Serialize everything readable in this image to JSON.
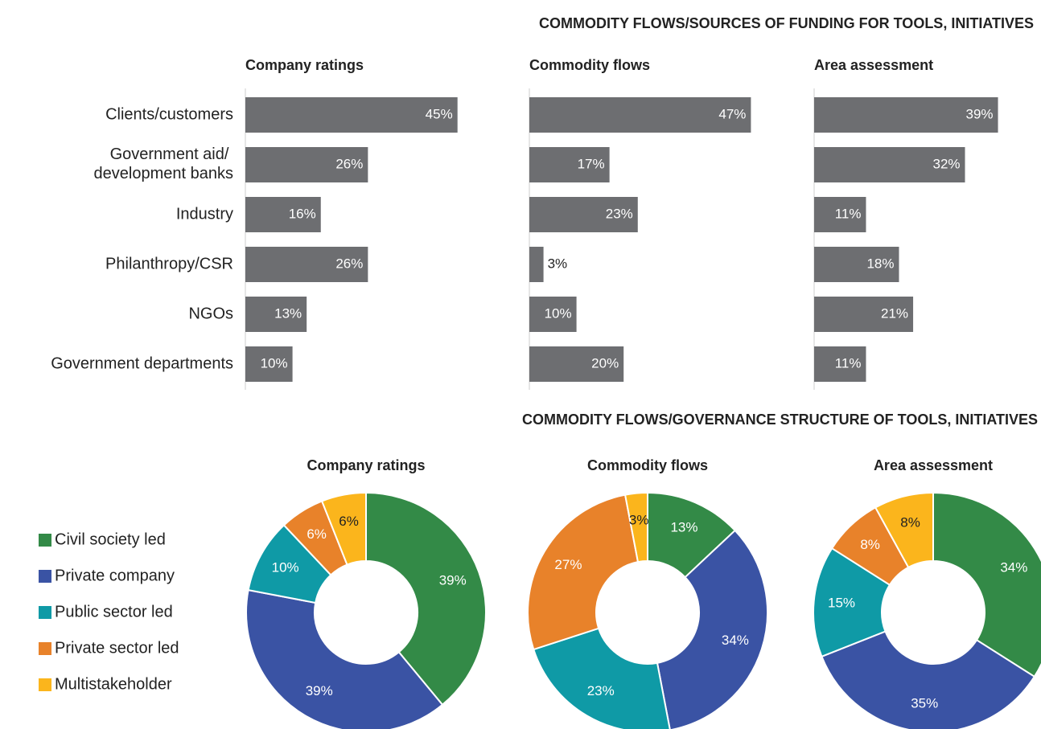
{
  "chart_data": [
    {
      "type": "bar",
      "title": "COMMODITY FLOWS/SOURCES OF FUNDING FOR TOOLS, INITIATIVES",
      "categories": [
        "Clients/customers",
        "Government aid/ development banks",
        "Industry",
        "Philanthropy/CSR",
        "NGOs",
        "Government departments"
      ],
      "xlim": [
        0,
        50
      ],
      "series": [
        {
          "name": "Company ratings",
          "color": "#6d6e71",
          "values": [
            45,
            26,
            16,
            26,
            13,
            10
          ],
          "value_labels": [
            "45%",
            "26%",
            "16%",
            "26%",
            "13%",
            "10%"
          ]
        },
        {
          "name": "Commodity flows",
          "color": "#6d6e71",
          "values": [
            47,
            17,
            23,
            3,
            10,
            20
          ],
          "value_labels": [
            "47%",
            "17%",
            "23%",
            "3%",
            "10%",
            "20%"
          ]
        },
        {
          "name": "Area assessment",
          "color": "#6d6e71",
          "values": [
            39,
            32,
            11,
            18,
            21,
            11
          ],
          "value_labels": [
            "39%",
            "32%",
            "11%",
            "18%",
            "21%",
            "11%"
          ]
        }
      ]
    },
    {
      "type": "donut",
      "title": "COMMODITY FLOWS/GOVERNANCE STRUCTURE OF TOOLS, INITIATIVES",
      "categories": [
        "Civil society led",
        "Private company",
        "Public sector led",
        "Private sector led",
        "Multistakeholder"
      ],
      "colors": [
        "#338a47",
        "#3a53a4",
        "#0f9aa6",
        "#e8822a",
        "#fbb51c"
      ],
      "series": [
        {
          "name": "Company ratings",
          "values": [
            39,
            39,
            10,
            6,
            6
          ],
          "value_labels": [
            "39%",
            "39%",
            "10%",
            "6%",
            "6%"
          ]
        },
        {
          "name": "Commodity flows",
          "values": [
            13,
            34,
            23,
            27,
            3
          ],
          "value_labels": [
            "13%",
            "34%",
            "23%",
            "27%",
            "3%"
          ]
        },
        {
          "name": "Area assessment",
          "values": [
            34,
            35,
            15,
            8,
            8
          ],
          "value_labels": [
            "34%",
            "35%",
            "15%",
            "8%",
            "8%"
          ]
        }
      ]
    }
  ]
}
